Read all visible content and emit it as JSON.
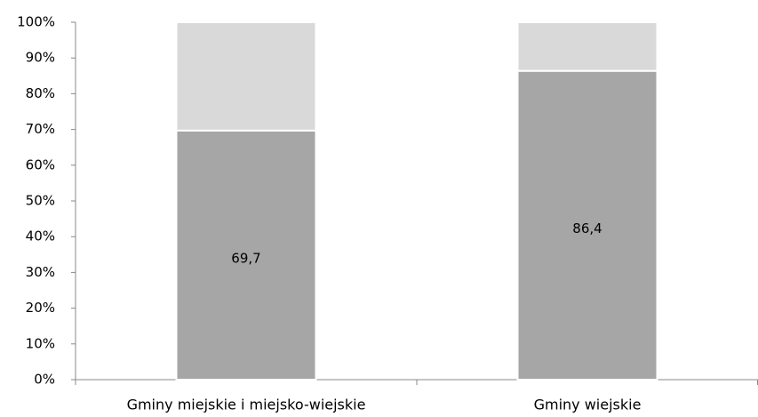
{
  "chart_data": {
    "type": "stacked_bar",
    "categories": [
      "Gminy miejskie i miejsko-wiejskie",
      "Gminy wiejskie"
    ],
    "series": [
      {
        "color": "#a6a6a6",
        "values": [
          69.7,
          86.4
        ],
        "value_labels": [
          "69,7",
          "86,4"
        ]
      },
      {
        "color": "#d9d9d9",
        "values": [
          30.3,
          13.6
        ]
      }
    ],
    "ylim": [
      0,
      100
    ],
    "yticks": [
      {
        "value": 0,
        "label": "0%"
      },
      {
        "value": 10,
        "label": "10%"
      },
      {
        "value": 20,
        "label": "20%"
      },
      {
        "value": 30,
        "label": "30%"
      },
      {
        "value": 40,
        "label": "40%"
      },
      {
        "value": 50,
        "label": "50%"
      },
      {
        "value": 60,
        "label": "60%"
      },
      {
        "value": 70,
        "label": "70%"
      },
      {
        "value": 80,
        "label": "80%"
      },
      {
        "value": 90,
        "label": "90%"
      },
      {
        "value": 100,
        "label": "100%"
      }
    ],
    "grid": false
  }
}
